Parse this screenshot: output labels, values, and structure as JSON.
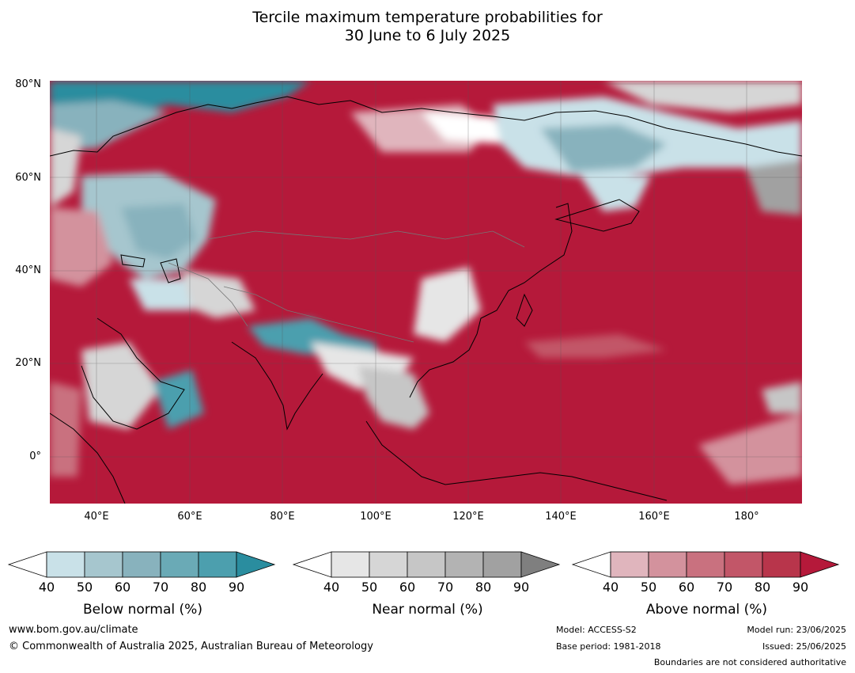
{
  "title": {
    "line1": "Tercile maximum temperature probabilities for",
    "line2": "30 June to 6 July 2025"
  },
  "map": {
    "lat_labels": [
      "80°N",
      "60°N",
      "40°N",
      "20°N",
      "0°"
    ],
    "lon_labels": [
      "40°E",
      "60°E",
      "80°E",
      "100°E",
      "120°E",
      "140°E",
      "160°E",
      "180°"
    ]
  },
  "legends": [
    {
      "id": "below",
      "title": "Below normal (%)",
      "ticks": [
        "40",
        "50",
        "60",
        "70",
        "80",
        "90"
      ],
      "colors": [
        "#ffffff",
        "#c9e1e8",
        "#a6c6ce",
        "#88b2bd",
        "#6aaab6",
        "#4c9fae",
        "#2a8d9f"
      ]
    },
    {
      "id": "near",
      "title": "Near normal (%)",
      "ticks": [
        "40",
        "50",
        "60",
        "70",
        "80",
        "90"
      ],
      "colors": [
        "#ffffff",
        "#e6e6e6",
        "#d6d6d6",
        "#c6c6c6",
        "#b3b3b3",
        "#a1a1a1",
        "#7f7f7f"
      ]
    },
    {
      "id": "above",
      "title": "Above normal (%)",
      "ticks": [
        "40",
        "50",
        "60",
        "70",
        "80",
        "90"
      ],
      "colors": [
        "#ffffff",
        "#e0b5bd",
        "#d3929d",
        "#c9717f",
        "#c25668",
        "#b8354b",
        "#b5193a"
      ]
    }
  ],
  "footer": {
    "website": "www.bom.gov.au/climate",
    "copyright": "© Commonwealth of Australia 2025, Australian Bureau of Meteorology",
    "model": "Model: ACCESS-S2",
    "base_period": "Base period: 1981-2018",
    "model_run": "Model run: 23/06/2025",
    "issued": "Issued: 25/06/2025",
    "disclaimer": "Boundaries are not considered authoritative"
  }
}
